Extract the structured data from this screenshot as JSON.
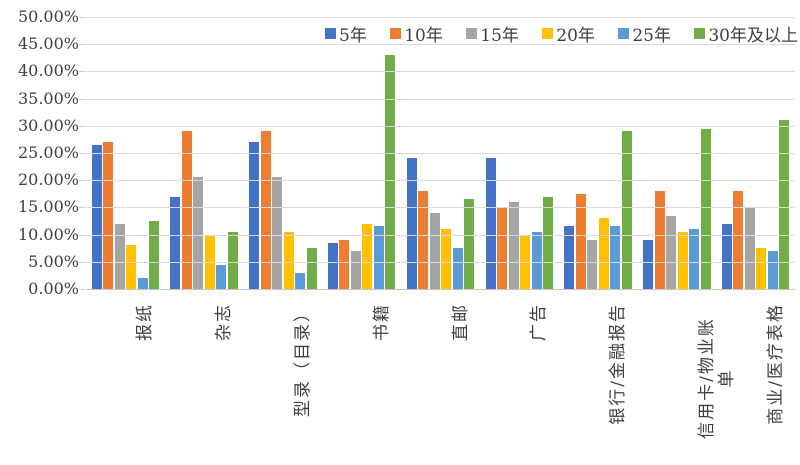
{
  "chart_data": {
    "type": "bar",
    "title": "",
    "legend_position": "top",
    "grid": true,
    "categories": [
      "报纸",
      "杂志",
      "型录（目录）",
      "书籍",
      "直邮",
      "广告",
      "银行/金融报告",
      "信用卡/物业账\n单",
      "商业/医疗表格"
    ],
    "series": [
      {
        "name": "5年",
        "color": "#4472C4",
        "values": [
          26.5,
          17,
          27,
          8.5,
          24,
          24,
          11.5,
          9,
          12
        ]
      },
      {
        "name": "10年",
        "color": "#ED7D31",
        "values": [
          27,
          29,
          29,
          9,
          18,
          15,
          17.5,
          18,
          18
        ]
      },
      {
        "name": "15年",
        "color": "#A5A5A5",
        "values": [
          12,
          20.5,
          20.5,
          7,
          14,
          16,
          9,
          13.5,
          15
        ]
      },
      {
        "name": "20年",
        "color": "#FFC000",
        "values": [
          8,
          10,
          10.5,
          12,
          11,
          10,
          13,
          10.5,
          7.5
        ]
      },
      {
        "name": "25年",
        "color": "#5B9BD5",
        "values": [
          2,
          4.5,
          3,
          11.5,
          7.5,
          10.5,
          11.5,
          11,
          7
        ]
      },
      {
        "name": "30年及以上",
        "color": "#70AD47",
        "values": [
          12.5,
          10.5,
          7.5,
          43,
          16.5,
          17,
          29,
          29.5,
          31
        ]
      }
    ],
    "y_axis": {
      "min": 0,
      "max": 50,
      "step": 5,
      "tick_labels": [
        "0.00%",
        "5.00%",
        "10.00%",
        "15.00%",
        "20.00%",
        "25.00%",
        "30.00%",
        "35.00%",
        "40.00%",
        "45.00%",
        "50.00%"
      ]
    },
    "colors": {
      "background": "#ffffff",
      "gridline": "#d9d9d9",
      "axis_line": "#c6c6c6",
      "text": "#3f3f3f"
    }
  }
}
